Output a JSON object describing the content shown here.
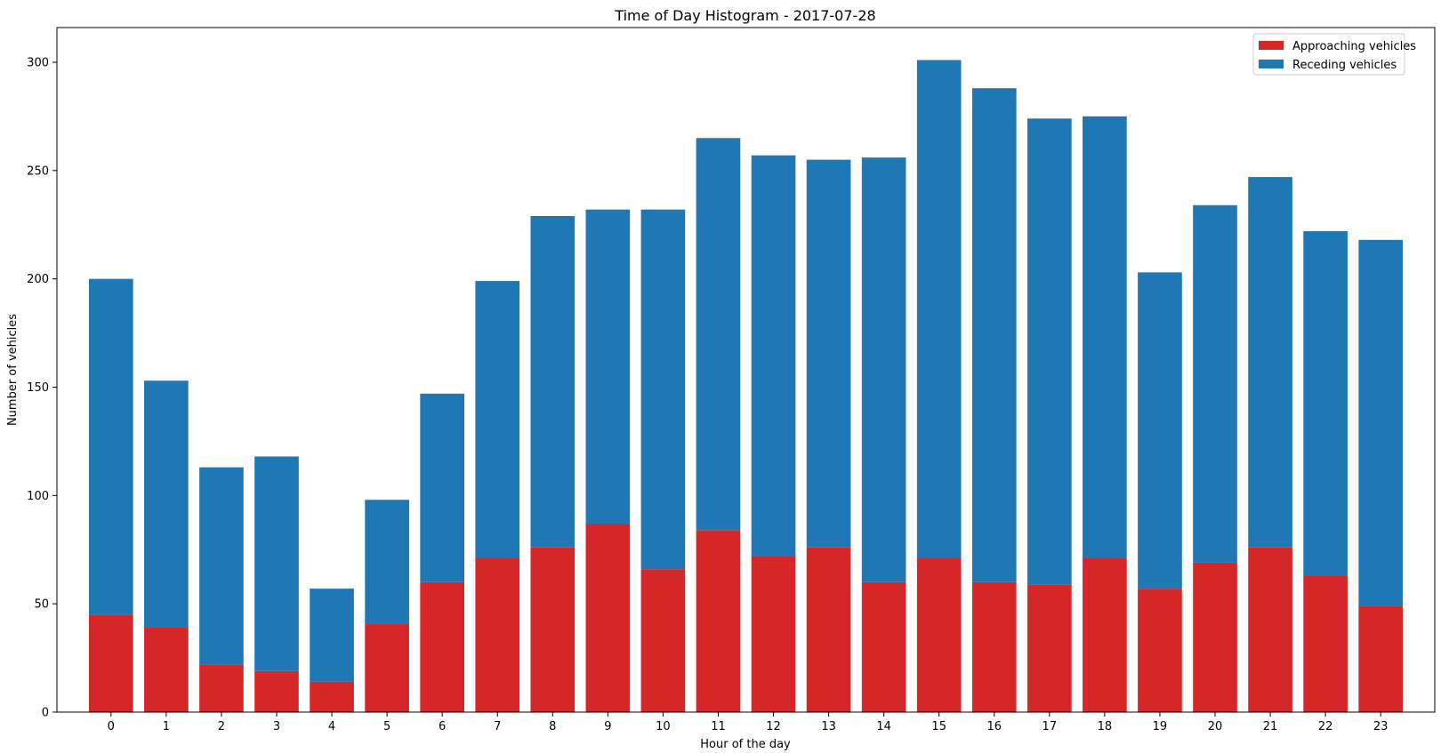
{
  "chart_data": {
    "type": "bar",
    "stacked": true,
    "title": "Time of Day Histogram - 2017-07-28",
    "xlabel": "Hour of the day",
    "ylabel": "Number of vehicles",
    "categories": [
      "0",
      "1",
      "2",
      "3",
      "4",
      "5",
      "6",
      "7",
      "8",
      "9",
      "10",
      "11",
      "12",
      "13",
      "14",
      "15",
      "16",
      "17",
      "18",
      "19",
      "20",
      "21",
      "22",
      "23"
    ],
    "ylim": [
      0,
      316
    ],
    "yticks": [
      "0",
      "50",
      "100",
      "150",
      "200",
      "250",
      "300"
    ],
    "legend_position": "top-right",
    "series": [
      {
        "name": "Approaching vehicles",
        "color": "#d62728",
        "values": [
          45,
          39,
          22,
          19,
          14,
          41,
          60,
          71,
          76,
          87,
          66,
          84,
          72,
          76,
          60,
          71,
          60,
          59,
          71,
          57,
          69,
          76,
          63,
          49
        ]
      },
      {
        "name": "Receding vehicles",
        "color": "#1f77b4",
        "values": [
          155,
          114,
          91,
          99,
          43,
          57,
          87,
          128,
          153,
          145,
          166,
          181,
          185,
          179,
          196,
          230,
          228,
          215,
          204,
          146,
          165,
          171,
          159,
          169
        ]
      }
    ]
  }
}
